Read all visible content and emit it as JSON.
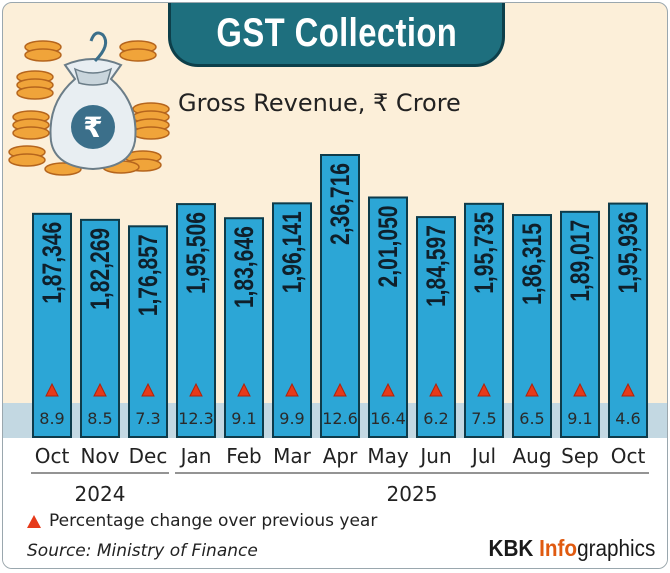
{
  "title": "GST Collection",
  "subtitle": "Gross Revenue, ₹ Crore",
  "legend_text": "Percentage change over previous year",
  "source": "Source: Ministry of Finance",
  "credit": {
    "kbk": "KBK ",
    "info": "Info",
    "graphics": "graphics"
  },
  "colors": {
    "bar": "#2ca6d6",
    "banner": "#1e6f7e",
    "triangle": "#e63a1a",
    "background": "#fcefd9",
    "axis_band": "#c3d8e2"
  },
  "chart_data": {
    "type": "bar",
    "title": "GST Collection",
    "subtitle": "Gross Revenue, ₹ Crore",
    "categories": [
      "Oct",
      "Nov",
      "Dec",
      "Jan",
      "Feb",
      "Mar",
      "Apr",
      "May",
      "Jun",
      "Jul",
      "Aug",
      "Sep",
      "Oct"
    ],
    "year_groups": [
      {
        "label": "2024",
        "start": 0,
        "end": 2
      },
      {
        "label": "2025",
        "start": 3,
        "end": 12
      }
    ],
    "values": [
      187346,
      182269,
      176857,
      195506,
      183646,
      196141,
      236716,
      201050,
      184597,
      195735,
      186315,
      189017,
      195936
    ],
    "value_labels": [
      "1,87,346",
      "1,82,269",
      "1,76,857",
      "1,95,506",
      "1,83,646",
      "1,96,141",
      "2,36,716",
      "2,01,050",
      "1,84,597",
      "1,95,735",
      "1,86,315",
      "1,89,017",
      "1,95,936"
    ],
    "pct_change": [
      "8.9",
      "8.5",
      "7.3",
      "12.3",
      "9.1",
      "9.9",
      "12.6",
      "16.4",
      "6.2",
      "7.5",
      "6.5",
      "9.1",
      "4.6"
    ],
    "xlabel": "",
    "ylabel": "₹ Crore",
    "ylim": [
      0,
      236716
    ]
  }
}
